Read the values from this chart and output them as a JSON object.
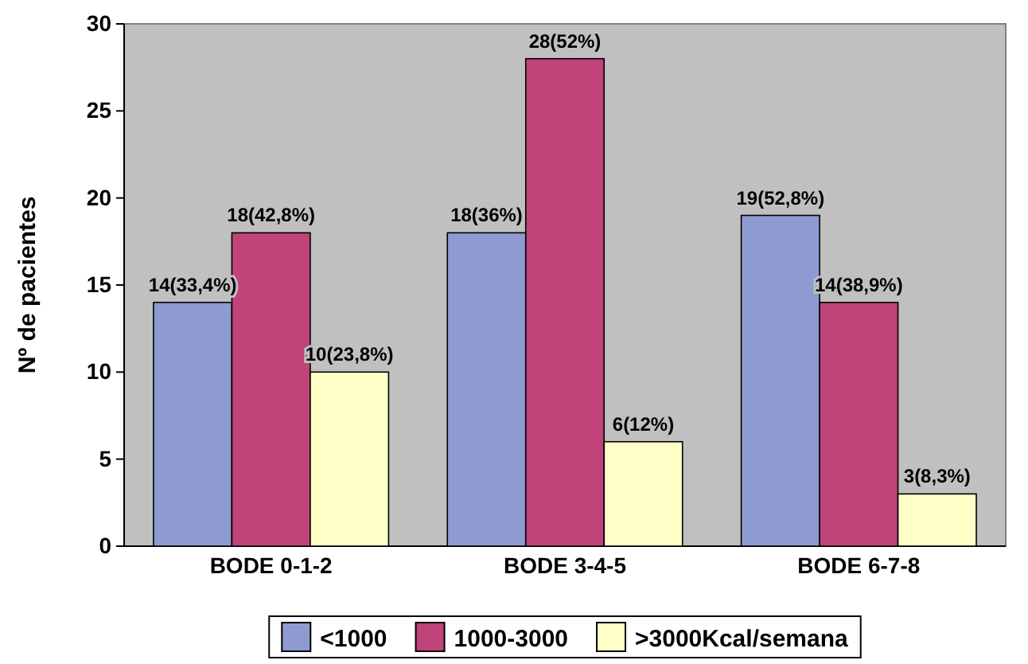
{
  "chart_data": {
    "type": "bar",
    "ylabel": "Nº de pacientes",
    "categories": [
      "BODE 0-1-2",
      "BODE 3-4-5",
      "BODE 6-7-8"
    ],
    "series": [
      {
        "name": "<1000",
        "color": "#8f9bd0",
        "values": [
          14,
          18,
          19
        ],
        "value_labels": [
          "14(33,4%)",
          "18(36%)",
          "19(52,8%)"
        ]
      },
      {
        "name": "1000-3000",
        "color": "#c0437a",
        "values": [
          18,
          28,
          14
        ],
        "value_labels": [
          "18(42,8%)",
          "28(52%)",
          "14(38,9%)"
        ]
      },
      {
        "name": ">3000Kcal/semana",
        "color": "#ffffc8",
        "values": [
          10,
          6,
          3
        ],
        "value_labels": [
          "10(23,8%)",
          "6(12%)",
          "3(8,3%)"
        ]
      }
    ],
    "ylim": [
      0,
      30
    ],
    "yticks": [
      0,
      5,
      10,
      15,
      20,
      25,
      30
    ],
    "legend": "bottom"
  }
}
